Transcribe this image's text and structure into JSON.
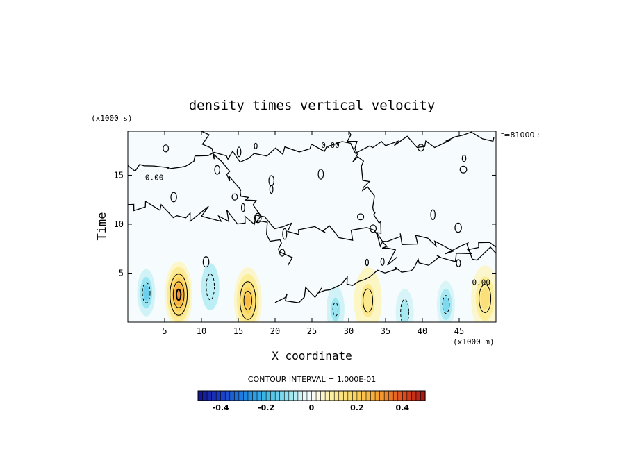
{
  "chart_data": {
    "type": "heatmap",
    "title": "density times vertical velocity",
    "xlabel": "X coordinate",
    "ylabel": "Time",
    "x_unit": "(x1000 m)",
    "y_unit": "(x1000 s)",
    "time_stamp": "t=81000 :",
    "xlim": [
      0,
      50
    ],
    "ylim": [
      0,
      19.5
    ],
    "x_ticks": [
      5,
      10,
      15,
      20,
      25,
      30,
      35,
      40,
      45
    ],
    "y_ticks": [
      5,
      10,
      15
    ],
    "contour_interval_text": "CONTOUR INTERVAL = 1.000E-01",
    "contour_labels": [
      {
        "text": "0.00",
        "x": 3.6,
        "y": 14.5
      },
      {
        "text": "0.00",
        "x": 27.5,
        "y": 17.8
      },
      {
        "text": "0.00",
        "x": 48.0,
        "y": 3.8
      }
    ],
    "features": [
      {
        "kind": "positive",
        "x": 6.9,
        "y": 2.8,
        "peak": 0.32
      },
      {
        "kind": "positive",
        "x": 16.3,
        "y": 2.2,
        "peak": 0.25
      },
      {
        "kind": "positive",
        "x": 32.6,
        "y": 2.2,
        "peak": 0.12
      },
      {
        "kind": "positive",
        "x": 48.5,
        "y": 2.4,
        "peak": 0.15
      },
      {
        "kind": "negative",
        "x": 2.5,
        "y": 3.0,
        "peak": -0.15
      },
      {
        "kind": "negative",
        "x": 11.2,
        "y": 3.6,
        "peak": -0.07
      },
      {
        "kind": "negative",
        "x": 28.2,
        "y": 1.3,
        "peak": -0.1
      },
      {
        "kind": "negative",
        "x": 37.6,
        "y": 1.0,
        "peak": -0.09
      },
      {
        "kind": "negative",
        "x": 43.2,
        "y": 1.8,
        "peak": -0.13
      }
    ],
    "colorbar": {
      "min": -0.5,
      "max": 0.5,
      "ticks": [
        -0.4,
        -0.2,
        0,
        0.2,
        0.4
      ],
      "tick_labels": [
        "-0.4",
        "-0.2",
        "0",
        "0.2",
        "0.4"
      ]
    },
    "grid": false
  }
}
